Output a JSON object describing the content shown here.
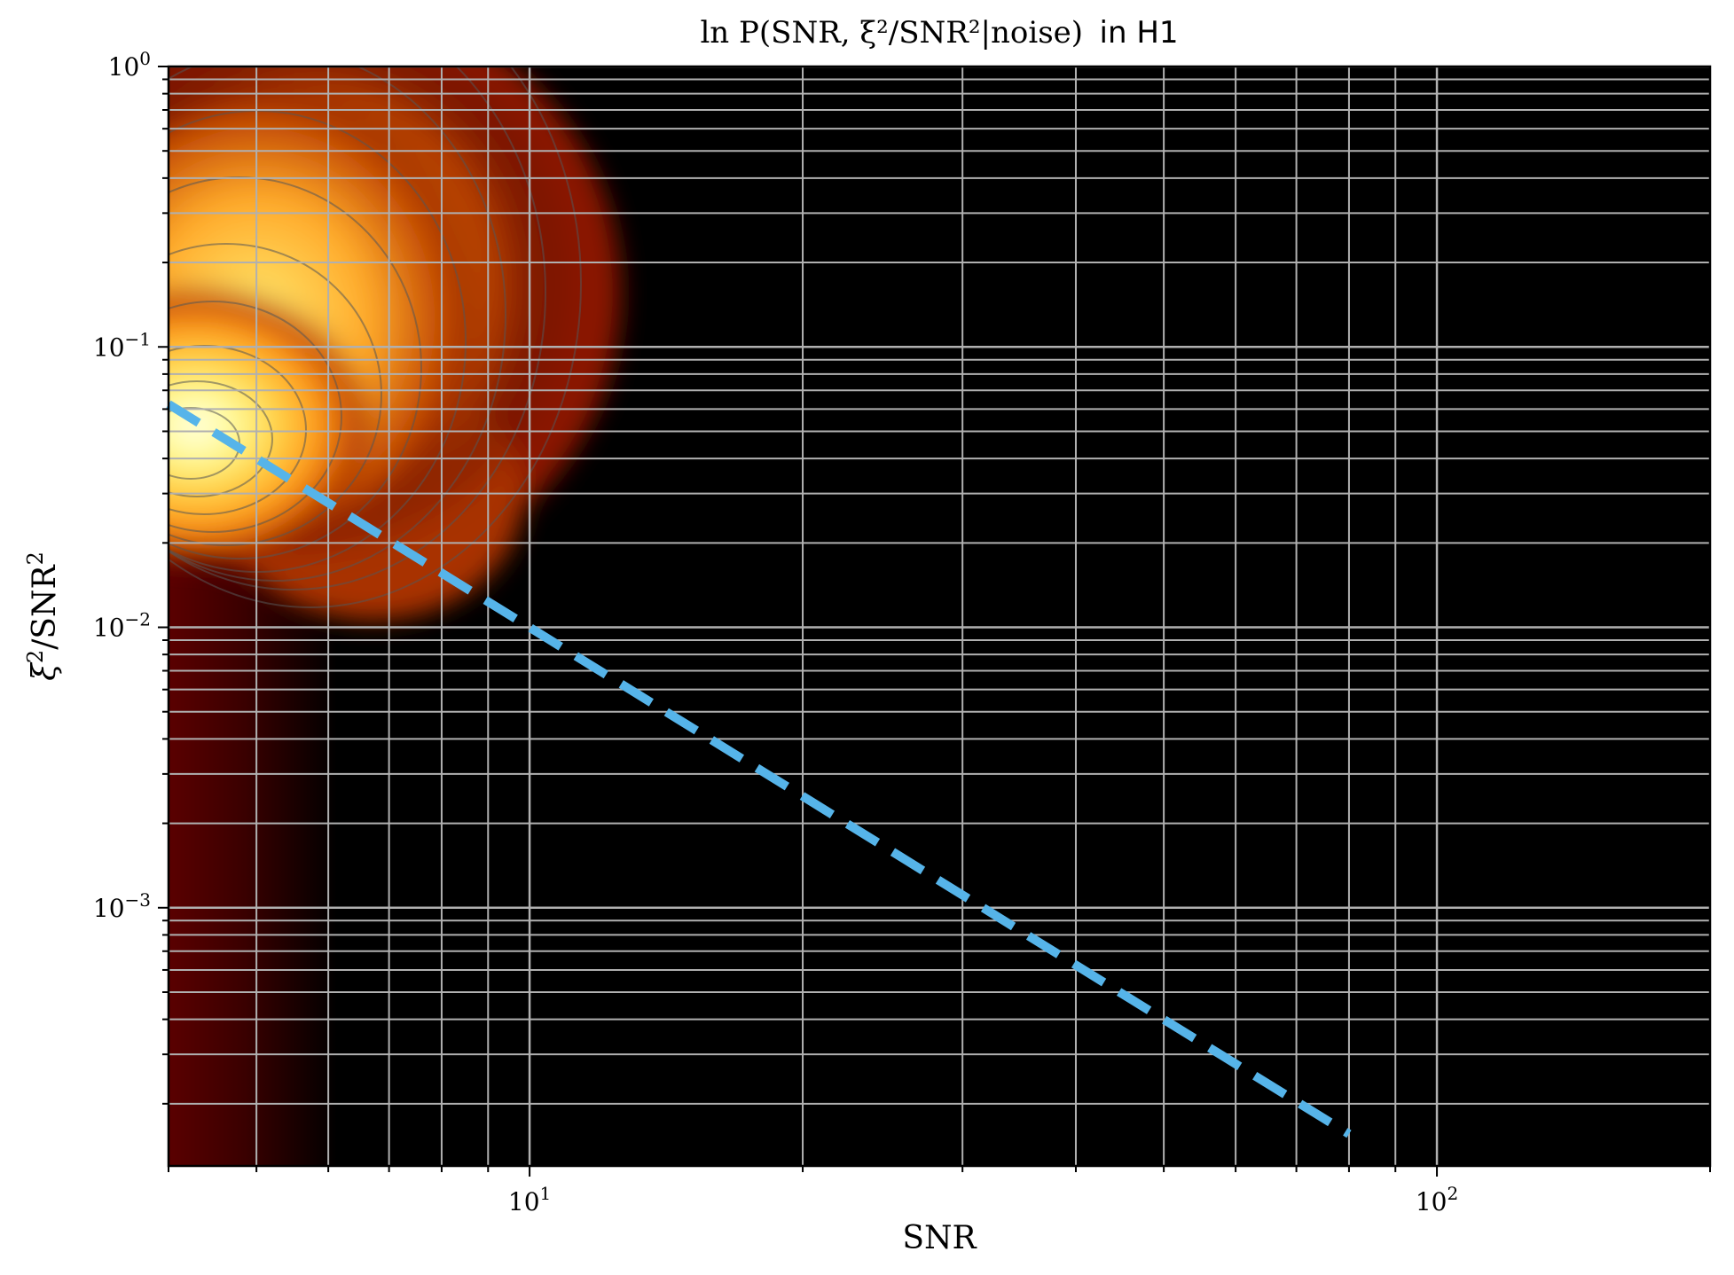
{
  "chart_data": {
    "type": "heatmap",
    "title_math": "ln P(SNR, ξ²/SNR²|noise)",
    "title_suffix": "in H1",
    "xlabel": "SNR",
    "ylabel_parts": {
      "xi": "ξ",
      "mid": "/SNR",
      "sup": "2"
    },
    "xscale": "log",
    "yscale": "log",
    "xlim": [
      4.0,
      200.0
    ],
    "ylim": [
      0.00012,
      1.0
    ],
    "x_major_ticks": [
      {
        "value": 10,
        "base": "10",
        "exp": "1"
      },
      {
        "value": 100,
        "base": "10",
        "exp": "2"
      }
    ],
    "y_major_ticks": [
      {
        "value": 1.0,
        "base": "10",
        "exp": "0"
      },
      {
        "value": 0.1,
        "base": "10",
        "exp": "−1"
      },
      {
        "value": 0.01,
        "base": "10",
        "exp": "−2"
      },
      {
        "value": 0.001,
        "base": "10",
        "exp": "−3"
      }
    ],
    "grid": true,
    "colormap": "afmhot",
    "density_peak": {
      "snr": 4.6,
      "chi2_over_snr2": 0.05
    },
    "threshold_line": {
      "style": "dashed",
      "color": "#56b4e9",
      "x": [
        4.0,
        80.0
      ],
      "y": [
        0.0625,
        0.000156
      ],
      "relation": "ξ²/SNR² = 1/SNR²"
    }
  }
}
